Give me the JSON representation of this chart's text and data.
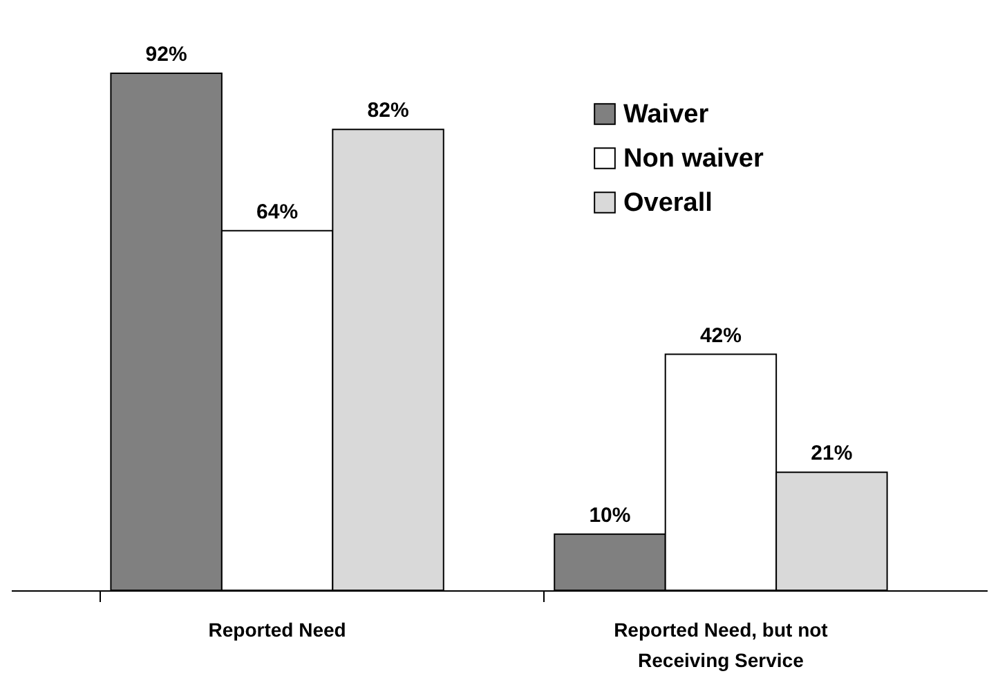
{
  "chart_data": {
    "type": "bar",
    "categories": [
      "Reported Need",
      "Reported Need, but not Receiving Service"
    ],
    "series": [
      {
        "name": "Waiver",
        "color": "#808080",
        "values": [
          92,
          10
        ],
        "value_labels": [
          "92%",
          "10%"
        ]
      },
      {
        "name": "Non waiver",
        "color": "#ffffff",
        "values": [
          64,
          42
        ],
        "value_labels": [
          "64%",
          "42%"
        ]
      },
      {
        "name": "Overall",
        "color": "#d9d9d9",
        "values": [
          82,
          21
        ],
        "value_labels": [
          "82%",
          "21%"
        ]
      }
    ],
    "legend": "top right",
    "grid": false
  }
}
